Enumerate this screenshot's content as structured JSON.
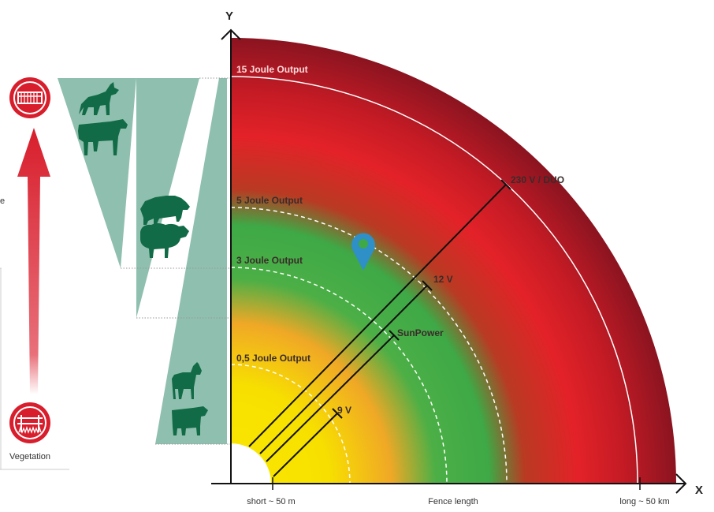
{
  "axes": {
    "y_label": "Y",
    "x_label": "X",
    "x_title": "Fence length",
    "x_left_tick": "short ~ 50 m",
    "x_right_tick": "long ~ 50 km"
  },
  "zones": [
    {
      "label": "15 Joule Output"
    },
    {
      "label": "5 Joule Output"
    },
    {
      "label": "3 Joule Output"
    },
    {
      "label": "0,5 Joule Output"
    }
  ],
  "devices": [
    {
      "label": "230 V / DUO"
    },
    {
      "label": "12 V"
    },
    {
      "label": "SunPower"
    },
    {
      "label": "9 V"
    }
  ],
  "left_panel": {
    "bottom_label": "Vegetation",
    "cut_letter": "e"
  },
  "animals": {
    "top_group": [
      "wolf-icon",
      "cow-icon"
    ],
    "middle_group": [
      "boar-icon",
      "sheep-icon"
    ],
    "bottom_group": [
      "horse-icon",
      "cattle-icon"
    ]
  },
  "colors": {
    "outer": "#8a1420",
    "red": "#e32228",
    "green": "#3daa45",
    "orange": "#f0a020",
    "yellow": "#f7e500",
    "band": "#8fbfae",
    "arrow": "#d81e2c",
    "marker": "#2f8fc7"
  }
}
